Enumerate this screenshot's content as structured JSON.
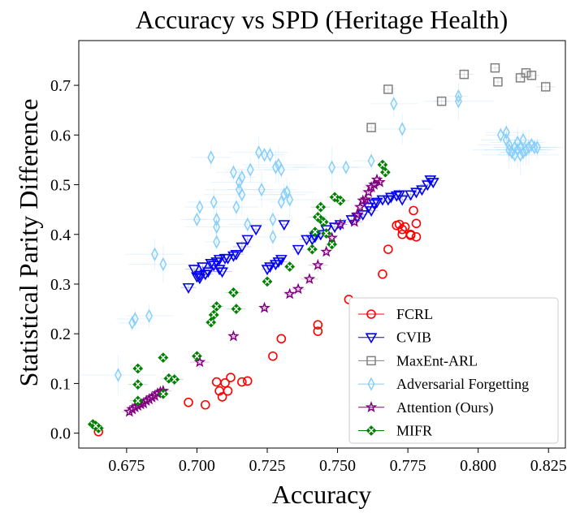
{
  "chart_data": {
    "type": "scatter",
    "title": "Accuracy vs SPD (Heritage Health)",
    "xlabel": "Accuracy",
    "ylabel": "Statistical Parity Difference",
    "xlim": [
      0.658,
      0.831
    ],
    "ylim": [
      -0.03,
      0.79
    ],
    "xticks": [
      "0.675",
      "0.700",
      "0.725",
      "0.750",
      "0.775",
      "0.800",
      "0.825"
    ],
    "xtick_values": [
      0.675,
      0.7,
      0.725,
      0.75,
      0.775,
      0.8,
      0.825
    ],
    "yticks": [
      "0.0",
      "0.1",
      "0.2",
      "0.3",
      "0.4",
      "0.5",
      "0.6",
      "0.7"
    ],
    "ytick_values": [
      0.0,
      0.1,
      0.2,
      0.3,
      0.4,
      0.5,
      0.6,
      0.7
    ],
    "grid": false,
    "legend_position": "lower-right",
    "series": [
      {
        "name": "FCRL",
        "marker": "circle",
        "color": "#ff0000",
        "points": [
          [
            0.665,
            0.003
          ],
          [
            0.697,
            0.062
          ],
          [
            0.703,
            0.057
          ],
          [
            0.707,
            0.103
          ],
          [
            0.708,
            0.085
          ],
          [
            0.709,
            0.073
          ],
          [
            0.71,
            0.101
          ],
          [
            0.711,
            0.085
          ],
          [
            0.712,
            0.112
          ],
          [
            0.716,
            0.103
          ],
          [
            0.718,
            0.105
          ],
          [
            0.727,
            0.155
          ],
          [
            0.73,
            0.19
          ],
          [
            0.743,
            0.205
          ],
          [
            0.743,
            0.218
          ],
          [
            0.754,
            0.269
          ],
          [
            0.766,
            0.32
          ],
          [
            0.768,
            0.37
          ],
          [
            0.771,
            0.418
          ],
          [
            0.772,
            0.42
          ],
          [
            0.773,
            0.41
          ],
          [
            0.773,
            0.4
          ],
          [
            0.774,
            0.415
          ],
          [
            0.776,
            0.398
          ],
          [
            0.776,
            0.4
          ],
          [
            0.777,
            0.448
          ],
          [
            0.778,
            0.422
          ],
          [
            0.778,
            0.395
          ]
        ]
      },
      {
        "name": "CVIB",
        "marker": "triangle-down",
        "color": "#0000ee",
        "points": [
          [
            0.697,
            0.293
          ],
          [
            0.699,
            0.33
          ],
          [
            0.7,
            0.315
          ],
          [
            0.701,
            0.318
          ],
          [
            0.701,
            0.312
          ],
          [
            0.702,
            0.335
          ],
          [
            0.703,
            0.32
          ],
          [
            0.704,
            0.325
          ],
          [
            0.705,
            0.342
          ],
          [
            0.706,
            0.338
          ],
          [
            0.707,
            0.345
          ],
          [
            0.708,
            0.35
          ],
          [
            0.708,
            0.33
          ],
          [
            0.709,
            0.325
          ],
          [
            0.71,
            0.352
          ],
          [
            0.711,
            0.352
          ],
          [
            0.713,
            0.357
          ],
          [
            0.714,
            0.36
          ],
          [
            0.716,
            0.375
          ],
          [
            0.718,
            0.39
          ],
          [
            0.721,
            0.41
          ],
          [
            0.725,
            0.33
          ],
          [
            0.726,
            0.335
          ],
          [
            0.728,
            0.34
          ],
          [
            0.729,
            0.345
          ],
          [
            0.73,
            0.35
          ],
          [
            0.731,
            0.42
          ],
          [
            0.736,
            0.37
          ],
          [
            0.739,
            0.39
          ],
          [
            0.741,
            0.39
          ],
          [
            0.742,
            0.395
          ],
          [
            0.744,
            0.4
          ],
          [
            0.746,
            0.41
          ],
          [
            0.749,
            0.415
          ],
          [
            0.751,
            0.42
          ],
          [
            0.755,
            0.43
          ],
          [
            0.757,
            0.435
          ],
          [
            0.759,
            0.44
          ],
          [
            0.761,
            0.455
          ],
          [
            0.762,
            0.448
          ],
          [
            0.763,
            0.462
          ],
          [
            0.764,
            0.465
          ],
          [
            0.766,
            0.47
          ],
          [
            0.768,
            0.47
          ],
          [
            0.769,
            0.475
          ],
          [
            0.771,
            0.478
          ],
          [
            0.772,
            0.48
          ],
          [
            0.773,
            0.47
          ],
          [
            0.776,
            0.48
          ],
          [
            0.778,
            0.485
          ],
          [
            0.78,
            0.49
          ],
          [
            0.782,
            0.5
          ],
          [
            0.783,
            0.51
          ],
          [
            0.784,
            0.505
          ]
        ]
      },
      {
        "name": "MaxEnt-ARL",
        "marker": "square",
        "color": "#808080",
        "points": [
          [
            0.762,
            0.615
          ],
          [
            0.768,
            0.692
          ],
          [
            0.787,
            0.668
          ],
          [
            0.795,
            0.722
          ],
          [
            0.806,
            0.735
          ],
          [
            0.807,
            0.707
          ],
          [
            0.815,
            0.715
          ],
          [
            0.817,
            0.725
          ],
          [
            0.819,
            0.72
          ],
          [
            0.824,
            0.697
          ]
        ]
      },
      {
        "name": "Adversarial Forgetting",
        "marker": "thin-diamond",
        "color": "#87cefa",
        "points": [
          [
            0.672,
            0.117
          ],
          [
            0.677,
            0.222
          ],
          [
            0.678,
            0.23
          ],
          [
            0.683,
            0.236
          ],
          [
            0.685,
            0.36
          ],
          [
            0.688,
            0.34
          ],
          [
            0.7,
            0.43
          ],
          [
            0.701,
            0.455
          ],
          [
            0.705,
            0.555
          ],
          [
            0.706,
            0.465
          ],
          [
            0.707,
            0.415
          ],
          [
            0.707,
            0.43
          ],
          [
            0.707,
            0.385
          ],
          [
            0.713,
            0.525
          ],
          [
            0.714,
            0.455
          ],
          [
            0.715,
            0.505
          ],
          [
            0.715,
            0.49
          ],
          [
            0.716,
            0.48
          ],
          [
            0.716,
            0.515
          ],
          [
            0.718,
            0.42
          ],
          [
            0.719,
            0.53
          ],
          [
            0.722,
            0.565
          ],
          [
            0.723,
            0.49
          ],
          [
            0.724,
            0.56
          ],
          [
            0.726,
            0.56
          ],
          [
            0.727,
            0.43
          ],
          [
            0.727,
            0.395
          ],
          [
            0.728,
            0.535
          ],
          [
            0.729,
            0.54
          ],
          [
            0.73,
            0.465
          ],
          [
            0.73,
            0.53
          ],
          [
            0.731,
            0.48
          ],
          [
            0.732,
            0.485
          ],
          [
            0.733,
            0.47
          ],
          [
            0.748,
            0.535
          ],
          [
            0.753,
            0.535
          ],
          [
            0.762,
            0.548
          ],
          [
            0.77,
            0.663
          ],
          [
            0.773,
            0.612
          ],
          [
            0.793,
            0.668
          ],
          [
            0.793,
            0.678
          ],
          [
            0.808,
            0.6
          ],
          [
            0.81,
            0.605
          ],
          [
            0.81,
            0.59
          ],
          [
            0.811,
            0.58
          ],
          [
            0.811,
            0.57
          ],
          [
            0.812,
            0.565
          ],
          [
            0.813,
            0.56
          ],
          [
            0.813,
            0.575
          ],
          [
            0.814,
            0.585
          ],
          [
            0.814,
            0.57
          ],
          [
            0.815,
            0.56
          ],
          [
            0.815,
            0.575
          ],
          [
            0.816,
            0.59
          ],
          [
            0.816,
            0.565
          ],
          [
            0.817,
            0.57
          ],
          [
            0.818,
            0.575
          ],
          [
            0.819,
            0.58
          ],
          [
            0.82,
            0.575
          ],
          [
            0.821,
            0.575
          ]
        ]
      },
      {
        "name": "Attention (Ours)",
        "marker": "star",
        "color": "#800080",
        "points": [
          [
            0.676,
            0.043
          ],
          [
            0.677,
            0.048
          ],
          [
            0.678,
            0.052
          ],
          [
            0.679,
            0.055
          ],
          [
            0.68,
            0.058
          ],
          [
            0.681,
            0.06
          ],
          [
            0.682,
            0.065
          ],
          [
            0.683,
            0.068
          ],
          [
            0.684,
            0.072
          ],
          [
            0.685,
            0.075
          ],
          [
            0.686,
            0.08
          ],
          [
            0.687,
            0.083
          ],
          [
            0.688,
            0.085
          ],
          [
            0.701,
            0.143
          ],
          [
            0.713,
            0.195
          ],
          [
            0.724,
            0.252
          ],
          [
            0.733,
            0.28
          ],
          [
            0.736,
            0.29
          ],
          [
            0.74,
            0.31
          ],
          [
            0.743,
            0.338
          ],
          [
            0.746,
            0.365
          ],
          [
            0.748,
            0.393
          ],
          [
            0.751,
            0.42
          ],
          [
            0.756,
            0.425
          ],
          [
            0.757,
            0.44
          ],
          [
            0.758,
            0.455
          ],
          [
            0.759,
            0.468
          ],
          [
            0.76,
            0.47
          ],
          [
            0.761,
            0.485
          ],
          [
            0.762,
            0.495
          ],
          [
            0.763,
            0.5
          ],
          [
            0.764,
            0.51
          ],
          [
            0.765,
            0.505
          ]
        ]
      },
      {
        "name": "MIFR",
        "marker": "x-filled",
        "color": "#008000",
        "points": [
          [
            0.663,
            0.018
          ],
          [
            0.665,
            0.01
          ],
          [
            0.664,
            0.015
          ],
          [
            0.679,
            0.065
          ],
          [
            0.679,
            0.098
          ],
          [
            0.679,
            0.13
          ],
          [
            0.688,
            0.152
          ],
          [
            0.688,
            0.079
          ],
          [
            0.69,
            0.11
          ],
          [
            0.692,
            0.108
          ],
          [
            0.7,
            0.155
          ],
          [
            0.705,
            0.223
          ],
          [
            0.706,
            0.238
          ],
          [
            0.707,
            0.255
          ],
          [
            0.713,
            0.283
          ],
          [
            0.714,
            0.25
          ],
          [
            0.725,
            0.305
          ],
          [
            0.733,
            0.335
          ],
          [
            0.741,
            0.37
          ],
          [
            0.742,
            0.405
          ],
          [
            0.743,
            0.435
          ],
          [
            0.744,
            0.455
          ],
          [
            0.745,
            0.425
          ],
          [
            0.746,
            0.402
          ],
          [
            0.748,
            0.38
          ],
          [
            0.749,
            0.475
          ],
          [
            0.751,
            0.468
          ],
          [
            0.766,
            0.54
          ],
          [
            0.767,
            0.525
          ]
        ]
      }
    ]
  }
}
